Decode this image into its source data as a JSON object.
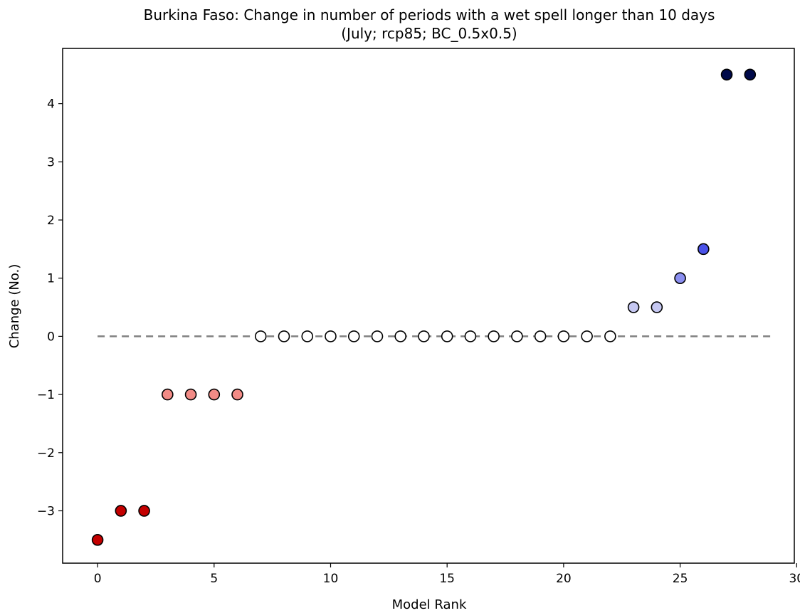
{
  "chart_data": {
    "type": "scatter",
    "title": "Burkina Faso: Change in number of periods with a wet spell longer than 10 days",
    "subtitle": "(July; rcp85; BC_0.5x0.5)",
    "xlabel": "Model Rank",
    "ylabel": "Change (No.)",
    "xlim": [
      -1.5,
      29.9
    ],
    "ylim": [
      -3.9,
      4.95
    ],
    "xticks": [
      0,
      5,
      10,
      15,
      20,
      25,
      30
    ],
    "xtick_labels": [
      "0",
      "5",
      "10",
      "15",
      "20",
      "25",
      "30"
    ],
    "yticks": [
      -3,
      -2,
      -1,
      0,
      1,
      2,
      3,
      4
    ],
    "ytick_labels": [
      "−3",
      "−2",
      "−1",
      "0",
      "1",
      "2",
      "3",
      "4"
    ],
    "grid": false,
    "reference_line": {
      "y": 0,
      "x_from": 0,
      "x_to": 28.9,
      "style": "dashed",
      "color": "#808080"
    },
    "points": [
      {
        "x": 0,
        "y": -3.5,
        "color": "#c40000"
      },
      {
        "x": 1,
        "y": -3,
        "color": "#c40000"
      },
      {
        "x": 2,
        "y": -3,
        "color": "#c40000"
      },
      {
        "x": 3,
        "y": -1,
        "color": "#f28b86"
      },
      {
        "x": 4,
        "y": -1,
        "color": "#f28b86"
      },
      {
        "x": 5,
        "y": -1,
        "color": "#f28b86"
      },
      {
        "x": 6,
        "y": -1,
        "color": "#f28b86"
      },
      {
        "x": 7,
        "y": 0,
        "color": "#ffffff"
      },
      {
        "x": 8,
        "y": 0,
        "color": "#ffffff"
      },
      {
        "x": 9,
        "y": 0,
        "color": "#ffffff"
      },
      {
        "x": 10,
        "y": 0,
        "color": "#ffffff"
      },
      {
        "x": 11,
        "y": 0,
        "color": "#ffffff"
      },
      {
        "x": 12,
        "y": 0,
        "color": "#ffffff"
      },
      {
        "x": 13,
        "y": 0,
        "color": "#ffffff"
      },
      {
        "x": 14,
        "y": 0,
        "color": "#ffffff"
      },
      {
        "x": 15,
        "y": 0,
        "color": "#ffffff"
      },
      {
        "x": 16,
        "y": 0,
        "color": "#ffffff"
      },
      {
        "x": 17,
        "y": 0,
        "color": "#ffffff"
      },
      {
        "x": 18,
        "y": 0,
        "color": "#ffffff"
      },
      {
        "x": 19,
        "y": 0,
        "color": "#ffffff"
      },
      {
        "x": 20,
        "y": 0,
        "color": "#ffffff"
      },
      {
        "x": 21,
        "y": 0,
        "color": "#ffffff"
      },
      {
        "x": 22,
        "y": 0,
        "color": "#ffffff"
      },
      {
        "x": 23,
        "y": 0.5,
        "color": "#c6c8f2"
      },
      {
        "x": 24,
        "y": 0.5,
        "color": "#c6c8f2"
      },
      {
        "x": 25,
        "y": 1,
        "color": "#8b8ff0"
      },
      {
        "x": 26,
        "y": 1.5,
        "color": "#4a52e8"
      },
      {
        "x": 27,
        "y": 4.5,
        "color": "#000a4a"
      },
      {
        "x": 28,
        "y": 4.5,
        "color": "#000a4a"
      }
    ]
  }
}
